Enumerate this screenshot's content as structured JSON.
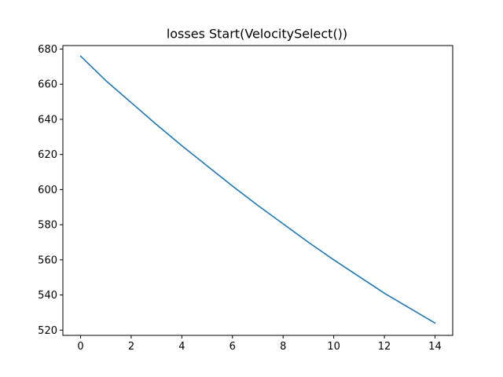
{
  "chart_data": {
    "type": "line",
    "title": "losses Start(VelocitySelect())",
    "xlabel": "",
    "ylabel": "",
    "xlim": [
      -0.7,
      14.7
    ],
    "ylim": [
      517,
      682
    ],
    "xticks": [
      0,
      2,
      4,
      6,
      8,
      10,
      12,
      14
    ],
    "yticks": [
      520,
      540,
      560,
      580,
      600,
      620,
      640,
      660,
      680
    ],
    "grid": false,
    "series": [
      {
        "color": "#1f77b4",
        "x": [
          0,
          1,
          2,
          3,
          4,
          5,
          6,
          7,
          8,
          9,
          10,
          11,
          12,
          13,
          14
        ],
        "y": [
          676,
          662,
          649.5,
          637,
          625,
          613.5,
          602,
          591,
          580.5,
          570,
          560,
          550.5,
          541,
          532.5,
          524
        ]
      }
    ]
  }
}
